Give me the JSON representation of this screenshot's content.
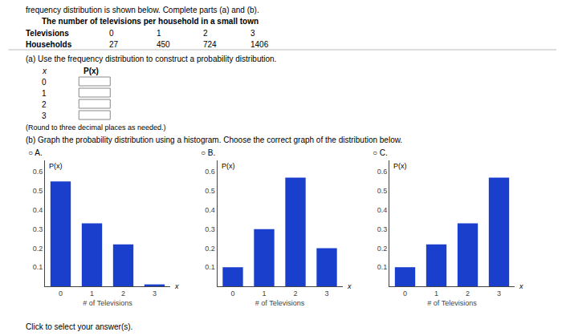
{
  "chart_data": [
    {
      "type": "table",
      "title": "frequency distribution is shown below. Complete parts (a) and (b).",
      "subtitle": "The number of televisions per household in a small town",
      "xlabel": "Televisions",
      "ylabel": "Households",
      "categories": [
        "0",
        "1",
        "2",
        "3"
      ],
      "values": [
        27,
        450,
        724,
        1406
      ],
      "annotations": [
        "(a) Use the frequency distribution to construct a probability distribution.",
        "x",
        "P(x)",
        "0",
        "1",
        "2",
        "3",
        "(Round to three decimal places as needed.)",
        "(b) Graph the probability distribution using a histogram. Choose the correct graph of the distribution below.",
        "Click to select your answer(s)."
      ]
    },
    {
      "type": "bar",
      "title": "○ A.",
      "xlabel": "# of Televisions",
      "ylabel": "P(x)",
      "categories": [
        "0",
        "1",
        "2",
        "3"
      ],
      "values": [
        0.55,
        0.33,
        0.22,
        0.01
      ],
      "color": "#1a3fcc",
      "ylim": [
        0,
        0.66
      ],
      "yticks": [
        0.1,
        0.2,
        0.3,
        0.4,
        0.5,
        0.6
      ],
      "grid": false,
      "annotations": [
        "x"
      ]
    },
    {
      "type": "bar",
      "title": "○ B.",
      "xlabel": "# of Televisions",
      "ylabel": "P(x)",
      "categories": [
        "0",
        "1",
        "2",
        "3"
      ],
      "values": [
        0.1,
        0.3,
        0.57,
        0.2
      ],
      "color": "#1a3fcc",
      "ylim": [
        0,
        0.66
      ],
      "yticks": [
        0.1,
        0.2,
        0.3,
        0.4,
        0.5,
        0.6
      ],
      "grid": false,
      "annotations": [
        "x"
      ]
    },
    {
      "type": "bar",
      "title": "○ C.",
      "xlabel": "# of Televisions",
      "ylabel": "P(x)",
      "categories": [
        "0",
        "1",
        "2",
        "3"
      ],
      "values": [
        0.1,
        0.22,
        0.33,
        0.57
      ],
      "color": "#1a3fcc",
      "ylim": [
        0,
        0.66
      ],
      "yticks": [
        0.1,
        0.2,
        0.3,
        0.4,
        0.5,
        0.6
      ],
      "grid": false,
      "annotations": [
        "x"
      ]
    }
  ]
}
